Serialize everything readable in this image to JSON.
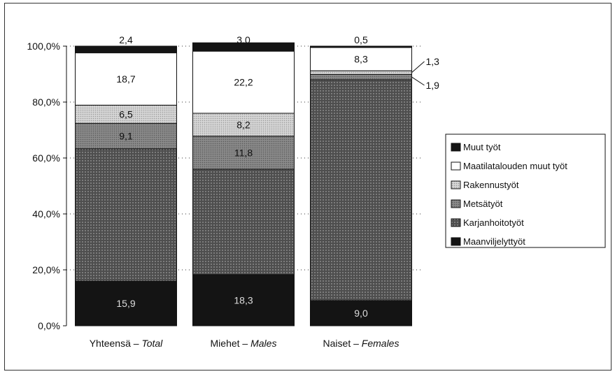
{
  "chart_data": {
    "type": "bar",
    "stacked": true,
    "percent": true,
    "categories": [
      "Yhteensä – ",
      "Miehet – ",
      "Naiset – "
    ],
    "categories_italic": [
      "Total",
      "Males",
      "Females"
    ],
    "ylim": [
      0,
      100
    ],
    "yticks": [
      "0,0%",
      "20,0%",
      "40,0%",
      "60,0%",
      "80,0%",
      "100,0%"
    ],
    "grid": "dotted horizontal",
    "legend_position": "right",
    "series": [
      {
        "name": "Maanviljelyttyöt",
        "values": [
          15.9,
          18.3,
          9.0
        ],
        "labels": [
          "15,9",
          "18,3",
          "9,0"
        ],
        "color": "#141414"
      },
      {
        "name": "Karjanhoitotyöt",
        "values": [
          47.4,
          37.7,
          79.0
        ],
        "labels": [
          "",
          "",
          ""
        ],
        "color": "#5a5a5a"
      },
      {
        "name": "Metsätyöt",
        "values": [
          9.1,
          11.8,
          1.9
        ],
        "labels": [
          "9,1",
          "11,8",
          "1,9"
        ],
        "color": "#8a8a8a"
      },
      {
        "name": "Rakennustyöt",
        "values": [
          6.5,
          8.2,
          1.3
        ],
        "labels": [
          "6,5",
          "8,2",
          "1,3"
        ],
        "color": "#c4c4c4"
      },
      {
        "name": "Maatilatalouden muut työt",
        "values": [
          18.7,
          22.2,
          8.3
        ],
        "labels": [
          "18,7",
          "22,2",
          "8,3"
        ],
        "color": "#ffffff"
      },
      {
        "name": "Muut työt",
        "values": [
          2.4,
          3.0,
          0.5
        ],
        "labels": [
          "2,4",
          "3,0",
          "0,5"
        ],
        "color": "#141414"
      }
    ]
  }
}
